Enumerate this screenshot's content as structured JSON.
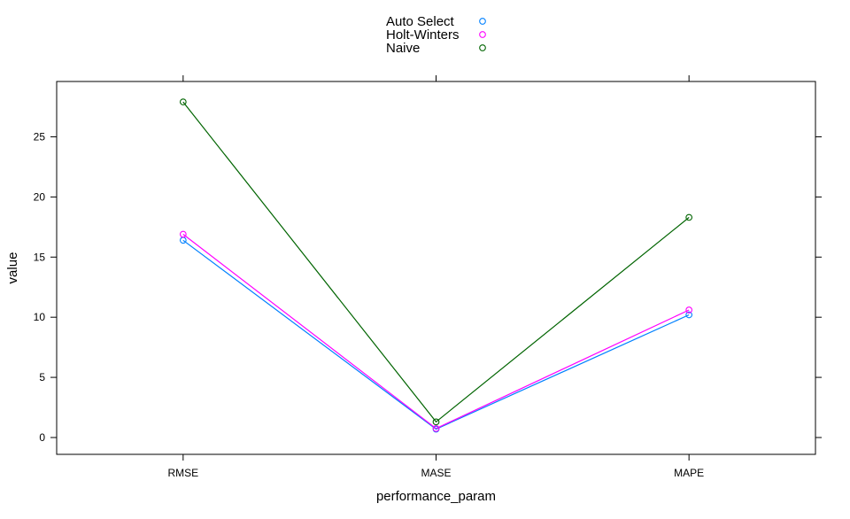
{
  "chart_data": {
    "type": "line",
    "xlabel": "performance_param",
    "ylabel": "value",
    "categories": [
      "RMSE",
      "MASE",
      "MAPE"
    ],
    "ylim": [
      -1.4,
      29.6
    ],
    "yticks": [
      0,
      5,
      10,
      15,
      20,
      25
    ],
    "grid": false,
    "legend": "top",
    "series": [
      {
        "name": "Auto Select",
        "color": "#0080ff",
        "values": [
          16.4,
          0.7,
          10.2
        ]
      },
      {
        "name": "Holt-Winters",
        "color": "#ff00ff",
        "values": [
          16.9,
          0.75,
          10.6
        ]
      },
      {
        "name": "Naive",
        "color": "#006400",
        "values": [
          27.9,
          1.3,
          18.3
        ]
      }
    ]
  }
}
